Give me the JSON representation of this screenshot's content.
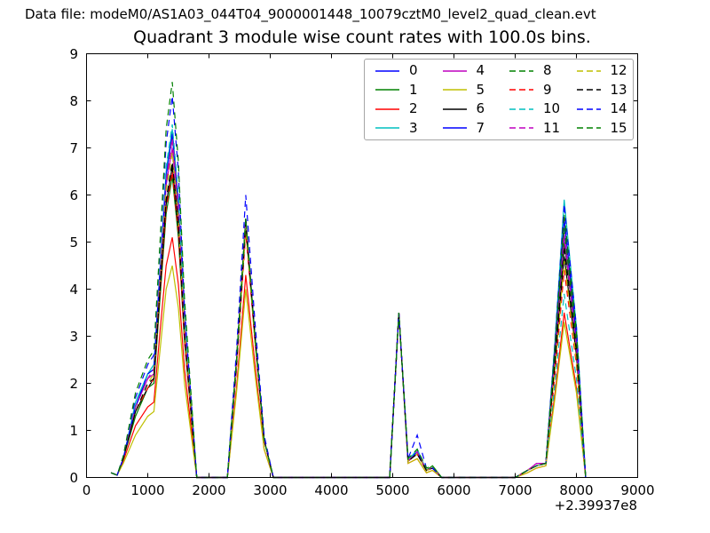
{
  "header": {
    "text": "Data file: modeM0/AS1A03_044T04_9000001448_10079cztM0_level2_quad_clean.evt"
  },
  "chart_data": {
    "type": "line",
    "title": "Quadrant 3 module wise count rates with 100.0s bins.",
    "xlabel": "",
    "ylabel": "",
    "xlim": [
      0,
      9000
    ],
    "ylim": [
      0,
      9
    ],
    "x_offset_label": "+2.39937e8",
    "x_ticks": [
      0,
      1000,
      2000,
      3000,
      4000,
      5000,
      6000,
      7000,
      8000,
      9000
    ],
    "y_ticks": [
      0,
      1,
      2,
      3,
      4,
      5,
      6,
      7,
      8,
      9
    ],
    "grid": false,
    "legend_position": "upper center, 4 columns",
    "x": [
      400,
      500,
      600,
      800,
      1000,
      1100,
      1200,
      1300,
      1400,
      1500,
      1600,
      1800,
      2300,
      2450,
      2600,
      2750,
      2900,
      3050,
      4950,
      5100,
      5250,
      5400,
      5550,
      5650,
      5800,
      7000,
      7200,
      7350,
      7500,
      7650,
      7800,
      8000,
      8150
    ],
    "series": [
      {
        "name": "0",
        "color": "#0000ff",
        "style": "solid",
        "values": [
          0.1,
          0.05,
          0.4,
          1.5,
          2.2,
          2.3,
          4.4,
          6.4,
          7.3,
          5.8,
          3.3,
          0,
          0,
          2.4,
          5.4,
          3.0,
          0.8,
          0,
          0,
          3.5,
          0.35,
          0.5,
          0.15,
          0.2,
          0,
          0,
          0.15,
          0.25,
          0.3,
          2.8,
          5.5,
          3.0,
          0
        ]
      },
      {
        "name": "1",
        "color": "#008000",
        "style": "solid",
        "values": [
          0.1,
          0.05,
          0.4,
          1.3,
          1.9,
          2.0,
          3.8,
          5.6,
          6.4,
          5.1,
          2.9,
          0,
          0,
          2.4,
          5.3,
          2.9,
          0.8,
          0,
          0,
          3.5,
          0.35,
          0.5,
          0.15,
          0.25,
          0,
          0,
          0.15,
          0.25,
          0.3,
          2.5,
          5.0,
          2.8,
          0
        ]
      },
      {
        "name": "2",
        "color": "#ff0000",
        "style": "solid",
        "values": [
          0.1,
          0.05,
          0.35,
          1.1,
          1.5,
          1.6,
          3.1,
          4.5,
          5.1,
          4.1,
          2.3,
          0,
          0,
          1.9,
          4.3,
          2.4,
          0.6,
          0,
          0,
          3.5,
          0.3,
          0.4,
          0.1,
          0.15,
          0,
          0,
          0.1,
          0.2,
          0.25,
          1.8,
          3.5,
          1.9,
          0
        ]
      },
      {
        "name": "3",
        "color": "#00bfbf",
        "style": "solid",
        "values": [
          0.1,
          0.05,
          0.4,
          1.6,
          2.2,
          2.4,
          4.4,
          6.5,
          7.4,
          5.9,
          3.3,
          0,
          0,
          2.5,
          5.5,
          3.0,
          0.8,
          0,
          0,
          3.5,
          0.35,
          0.6,
          0.15,
          0.2,
          0,
          0,
          0.15,
          0.25,
          0.3,
          2.9,
          5.9,
          3.2,
          0
        ]
      },
      {
        "name": "4",
        "color": "#bf00bf",
        "style": "solid",
        "values": [
          0.1,
          0.05,
          0.4,
          1.5,
          2.1,
          2.2,
          4.2,
          6.2,
          7.0,
          5.6,
          3.2,
          0,
          0,
          2.4,
          5.4,
          3.0,
          0.8,
          0,
          0,
          3.5,
          0.35,
          0.55,
          0.15,
          0.2,
          0,
          0,
          0.15,
          0.3,
          0.3,
          2.6,
          5.2,
          2.9,
          0
        ]
      },
      {
        "name": "5",
        "color": "#bfbf00",
        "style": "solid",
        "values": [
          0.1,
          0.05,
          0.3,
          0.9,
          1.3,
          1.4,
          2.7,
          4.0,
          4.5,
          3.6,
          2.0,
          0,
          0,
          1.8,
          4.0,
          2.2,
          0.6,
          0,
          0,
          3.5,
          0.3,
          0.4,
          0.1,
          0.15,
          0,
          0,
          0.1,
          0.2,
          0.25,
          1.7,
          3.3,
          1.8,
          0
        ]
      },
      {
        "name": "6",
        "color": "#000000",
        "style": "solid",
        "values": [
          0.1,
          0.05,
          0.4,
          1.4,
          1.9,
          2.1,
          4.0,
          5.8,
          6.6,
          5.3,
          3.0,
          0,
          0,
          2.5,
          5.5,
          3.0,
          0.8,
          0,
          0,
          3.5,
          0.35,
          0.5,
          0.15,
          0.2,
          0,
          0,
          0.15,
          0.25,
          0.3,
          2.4,
          4.7,
          2.6,
          0
        ]
      },
      {
        "name": "7",
        "color": "#0000ff",
        "style": "solid",
        "values": [
          0.1,
          0.05,
          0.4,
          1.5,
          2.2,
          2.3,
          4.4,
          6.4,
          7.3,
          5.8,
          3.3,
          0,
          0,
          2.4,
          5.4,
          3.0,
          0.8,
          0,
          0,
          3.5,
          0.35,
          0.55,
          0.15,
          0.2,
          0,
          0,
          0.15,
          0.25,
          0.3,
          2.8,
          5.5,
          3.0,
          0
        ]
      },
      {
        "name": "8",
        "color": "#008000",
        "style": "dashed",
        "values": [
          0.1,
          0.05,
          0.4,
          1.5,
          2.1,
          2.3,
          4.3,
          6.3,
          7.2,
          5.8,
          3.2,
          0,
          0,
          2.4,
          5.3,
          2.9,
          0.8,
          0,
          0,
          3.5,
          0.35,
          0.5,
          0.15,
          0.2,
          0,
          0,
          0.15,
          0.25,
          0.3,
          2.7,
          5.3,
          2.9,
          0
        ]
      },
      {
        "name": "9",
        "color": "#ff0000",
        "style": "dashed",
        "values": [
          0.1,
          0.05,
          0.4,
          1.4,
          1.9,
          2.1,
          3.9,
          5.7,
          6.5,
          5.2,
          2.9,
          0,
          0,
          2.3,
          5.2,
          2.9,
          0.8,
          0,
          0,
          3.5,
          0.35,
          0.5,
          0.15,
          0.2,
          0,
          0,
          0.15,
          0.25,
          0.3,
          2.2,
          4.4,
          2.4,
          0
        ]
      },
      {
        "name": "10",
        "color": "#00bfbf",
        "style": "dashed",
        "values": [
          0.1,
          0.05,
          0.4,
          1.6,
          2.2,
          2.4,
          4.5,
          6.6,
          7.5,
          6.0,
          3.4,
          0,
          0,
          2.4,
          5.4,
          3.0,
          0.8,
          0,
          0,
          3.5,
          0.35,
          0.6,
          0.15,
          0.2,
          0,
          0,
          0.15,
          0.25,
          0.3,
          2.0,
          3.9,
          2.1,
          0
        ]
      },
      {
        "name": "11",
        "color": "#bf00bf",
        "style": "dashed",
        "values": [
          0.1,
          0.05,
          0.4,
          1.5,
          2.1,
          2.3,
          4.3,
          6.3,
          7.2,
          5.8,
          3.2,
          0,
          0,
          2.4,
          5.4,
          3.0,
          0.8,
          0,
          0,
          3.5,
          0.35,
          0.55,
          0.15,
          0.2,
          0,
          0,
          0.15,
          0.3,
          0.3,
          2.6,
          5.1,
          2.8,
          0
        ]
      },
      {
        "name": "12",
        "color": "#bfbf00",
        "style": "dashed",
        "values": [
          0.1,
          0.05,
          0.4,
          1.4,
          2.0,
          2.2,
          4.1,
          6.1,
          6.9,
          5.5,
          3.1,
          0,
          0,
          2.4,
          5.3,
          2.9,
          0.8,
          0,
          0,
          3.5,
          0.35,
          0.5,
          0.15,
          0.2,
          0,
          0,
          0.15,
          0.25,
          0.3,
          2.3,
          4.6,
          2.5,
          0
        ]
      },
      {
        "name": "13",
        "color": "#000000",
        "style": "dashed",
        "values": [
          0.1,
          0.05,
          0.4,
          1.4,
          2.0,
          2.1,
          4.0,
          5.9,
          6.7,
          5.4,
          3.0,
          0,
          0,
          2.4,
          5.4,
          3.0,
          0.8,
          0,
          0,
          3.5,
          0.35,
          0.5,
          0.15,
          0.2,
          0,
          0,
          0.15,
          0.25,
          0.3,
          2.5,
          4.9,
          2.7,
          0
        ]
      },
      {
        "name": "14",
        "color": "#0000ff",
        "style": "dashed",
        "values": [
          0.1,
          0.05,
          0.45,
          1.7,
          2.4,
          2.6,
          4.9,
          7.1,
          8.1,
          6.5,
          3.6,
          0,
          0,
          2.7,
          6.0,
          3.3,
          0.9,
          0,
          0,
          3.5,
          0.4,
          0.9,
          0.2,
          0.2,
          0,
          0,
          0.15,
          0.25,
          0.3,
          2.9,
          5.8,
          3.2,
          0
        ]
      },
      {
        "name": "15",
        "color": "#008000",
        "style": "dashed",
        "values": [
          0.1,
          0.05,
          0.45,
          1.8,
          2.5,
          2.7,
          5.0,
          7.4,
          8.4,
          6.7,
          3.8,
          0,
          0,
          2.5,
          5.5,
          3.0,
          0.8,
          0,
          0,
          3.5,
          0.4,
          0.6,
          0.2,
          0.25,
          0,
          0,
          0.15,
          0.25,
          0.3,
          2.8,
          5.6,
          3.1,
          0
        ]
      }
    ]
  },
  "colors": {
    "background": "#ffffff",
    "axes_frame": "#000000",
    "legend_border": "#a6a6a6"
  }
}
